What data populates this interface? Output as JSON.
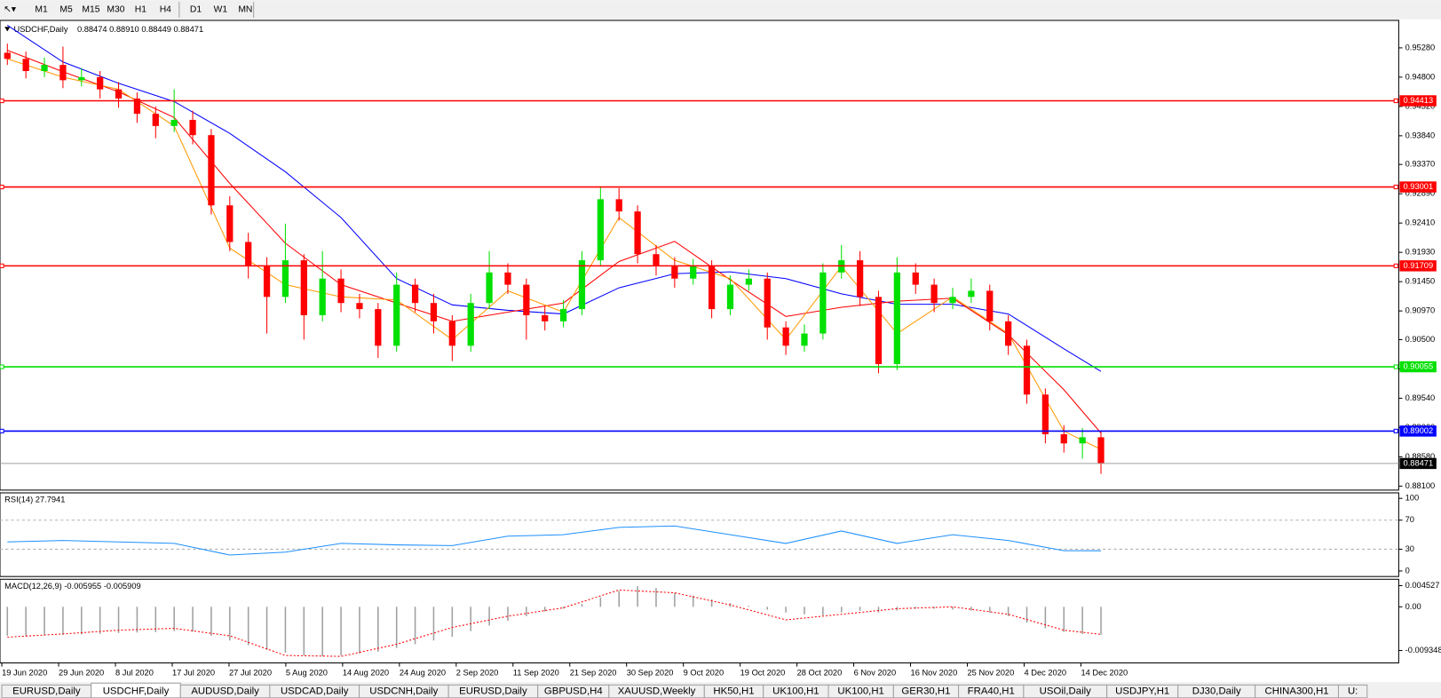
{
  "toolbar": {
    "timeframes": [
      "M1",
      "M5",
      "M15",
      "M30",
      "H1",
      "H4",
      "D1",
      "W1",
      "MN"
    ]
  },
  "tabs": [
    {
      "label": "EURUSD,Daily",
      "active": false
    },
    {
      "label": "USDCHF,Daily",
      "active": true
    },
    {
      "label": "AUDUSD,Daily",
      "active": false
    },
    {
      "label": "USDCAD,Daily",
      "active": false
    },
    {
      "label": "USDCNH,Daily",
      "active": false
    },
    {
      "label": "EURUSD,Daily",
      "active": false
    },
    {
      "label": "GBPUSD,H4",
      "active": false
    },
    {
      "label": "XAUUSD,Weekly",
      "active": false
    },
    {
      "label": "HK50,H1",
      "active": false
    },
    {
      "label": "UK100,H1",
      "active": false
    },
    {
      "label": "UK100,H1",
      "active": false
    },
    {
      "label": "GER30,H1",
      "active": false
    },
    {
      "label": "FRA40,H1",
      "active": false
    },
    {
      "label": "USOil,Daily",
      "active": false
    },
    {
      "label": "USDJPY,H1",
      "active": false
    },
    {
      "label": "DJ30,Daily",
      "active": false
    },
    {
      "label": "CHINA300,H1",
      "active": false
    },
    {
      "label": "U:",
      "active": false
    }
  ],
  "chart_data": [
    {
      "type": "candlestick",
      "title": "USDCHF,Daily",
      "quote": "0.88474 0.88910 0.88449 0.88471",
      "up_color": "#00e000",
      "down_color": "#ff0000",
      "ylim": [
        0.8805,
        0.957
      ],
      "yticks": [
        {
          "value": 0.9528,
          "label": "0.95280"
        },
        {
          "value": 0.948,
          "label": "0.94800"
        },
        {
          "value": 0.9432,
          "label": "0.94320"
        },
        {
          "value": 0.9384,
          "label": "0.93840"
        },
        {
          "value": 0.9337,
          "label": "0.93370"
        },
        {
          "value": 0.9289,
          "label": "0.92890"
        },
        {
          "value": 0.9241,
          "label": "0.92410"
        },
        {
          "value": 0.9193,
          "label": "0.91930"
        },
        {
          "value": 0.9145,
          "label": "0.91450"
        },
        {
          "value": 0.9097,
          "label": "0.90970"
        },
        {
          "value": 0.905,
          "label": "0.90500"
        },
        {
          "value": 0.9002,
          "label": "0.90020"
        },
        {
          "value": 0.8954,
          "label": "0.89540"
        },
        {
          "value": 0.8906,
          "label": "0.89060"
        },
        {
          "value": 0.8858,
          "label": "0.88580"
        },
        {
          "value": 0.881,
          "label": "0.88100"
        }
      ],
      "levels": [
        {
          "value": 0.94413,
          "color": "#ff0000"
        },
        {
          "value": 0.93001,
          "color": "#ff0000"
        },
        {
          "value": 0.91709,
          "color": "#ff0000"
        },
        {
          "value": 0.90055,
          "color": "#00e000"
        },
        {
          "value": 0.89002,
          "color": "#0000ff"
        },
        {
          "value": 0.88471,
          "color": "#000000"
        }
      ],
      "date_labels": [
        "19 Jun 2020",
        "29 Jun 2020",
        "8 Jul 2020",
        "17 Jul 2020",
        "27 Jul 2020",
        "5 Aug 2020",
        "14 Aug 2020",
        "24 Aug 2020",
        "2 Sep 2020",
        "11 Sep 2020",
        "21 Sep 2020",
        "30 Sep 2020",
        "9 Oct 2020",
        "19 Oct 2020",
        "28 Oct 2020",
        "6 Nov 2020",
        "16 Nov 2020",
        "25 Nov 2020",
        "4 Dec 2020",
        "14 Dec 2020"
      ],
      "ohlc": [
        [
          0.952,
          0.9535,
          0.95,
          0.951
        ],
        [
          0.951,
          0.9522,
          0.9478,
          0.949
        ],
        [
          0.949,
          0.9512,
          0.948,
          0.95
        ],
        [
          0.95,
          0.953,
          0.9462,
          0.9475
        ],
        [
          0.9475,
          0.9495,
          0.9465,
          0.948
        ],
        [
          0.948,
          0.949,
          0.9445,
          0.946
        ],
        [
          0.946,
          0.9472,
          0.943,
          0.9445
        ],
        [
          0.9445,
          0.9455,
          0.9405,
          0.942
        ],
        [
          0.942,
          0.9432,
          0.938,
          0.94
        ],
        [
          0.94,
          0.946,
          0.939,
          0.941
        ],
        [
          0.941,
          0.9425,
          0.937,
          0.9385
        ],
        [
          0.9385,
          0.9395,
          0.9255,
          0.927
        ],
        [
          0.927,
          0.9285,
          0.9195,
          0.921
        ],
        [
          0.921,
          0.9225,
          0.915,
          0.917
        ],
        [
          0.917,
          0.9185,
          0.906,
          0.912
        ],
        [
          0.912,
          0.924,
          0.911,
          0.918
        ],
        [
          0.918,
          0.919,
          0.905,
          0.909
        ],
        [
          0.909,
          0.9195,
          0.908,
          0.915
        ],
        [
          0.915,
          0.9165,
          0.9095,
          0.911
        ],
        [
          0.911,
          0.9125,
          0.9085,
          0.91
        ],
        [
          0.91,
          0.911,
          0.902,
          0.904
        ],
        [
          0.904,
          0.916,
          0.903,
          0.914
        ],
        [
          0.914,
          0.915,
          0.9095,
          0.911
        ],
        [
          0.911,
          0.9125,
          0.906,
          0.908
        ],
        [
          0.908,
          0.909,
          0.9015,
          0.904
        ],
        [
          0.904,
          0.9125,
          0.903,
          0.911
        ],
        [
          0.911,
          0.9195,
          0.91,
          0.916
        ],
        [
          0.916,
          0.9175,
          0.9125,
          0.914
        ],
        [
          0.914,
          0.915,
          0.905,
          0.909
        ],
        [
          0.909,
          0.9105,
          0.9065,
          0.908
        ],
        [
          0.908,
          0.9115,
          0.907,
          0.91
        ],
        [
          0.91,
          0.9195,
          0.909,
          0.918
        ],
        [
          0.918,
          0.93,
          0.917,
          0.928
        ],
        [
          0.928,
          0.9298,
          0.9245,
          0.926
        ],
        [
          0.926,
          0.927,
          0.9175,
          0.919
        ],
        [
          0.919,
          0.9205,
          0.9155,
          0.917
        ],
        [
          0.917,
          0.9185,
          0.9135,
          0.915
        ],
        [
          0.915,
          0.9182,
          0.914,
          0.917
        ],
        [
          0.917,
          0.918,
          0.9085,
          0.91
        ],
        [
          0.91,
          0.9155,
          0.909,
          0.914
        ],
        [
          0.914,
          0.9165,
          0.913,
          0.915
        ],
        [
          0.915,
          0.916,
          0.905,
          0.907
        ],
        [
          0.907,
          0.908,
          0.9025,
          0.904
        ],
        [
          0.904,
          0.9075,
          0.903,
          0.906
        ],
        [
          0.906,
          0.9175,
          0.905,
          0.916
        ],
        [
          0.916,
          0.9205,
          0.915,
          0.918
        ],
        [
          0.918,
          0.9195,
          0.9105,
          0.912
        ],
        [
          0.912,
          0.913,
          0.8995,
          0.901
        ],
        [
          0.901,
          0.9185,
          0.9,
          0.916
        ],
        [
          0.916,
          0.9175,
          0.9125,
          0.914
        ],
        [
          0.914,
          0.915,
          0.9095,
          0.911
        ],
        [
          0.911,
          0.9135,
          0.91,
          0.912
        ],
        [
          0.912,
          0.915,
          0.911,
          0.913
        ],
        [
          0.913,
          0.914,
          0.9065,
          0.908
        ],
        [
          0.908,
          0.909,
          0.9025,
          0.904
        ],
        [
          0.904,
          0.905,
          0.8945,
          0.896
        ],
        [
          0.896,
          0.897,
          0.888,
          0.8895
        ],
        [
          0.8895,
          0.891,
          0.8865,
          0.888
        ],
        [
          0.888,
          0.8905,
          0.8855,
          0.889
        ],
        [
          0.889,
          0.89,
          0.883,
          0.8847
        ]
      ],
      "series": [
        {
          "color": "#0000ff",
          "x": [
            0,
            3,
            6,
            9,
            12,
            15,
            18,
            21,
            24,
            27,
            30,
            33,
            36,
            39,
            42,
            45,
            48,
            51,
            54,
            57,
            59
          ],
          "values": [
            0.9565,
            0.9505,
            0.947,
            0.944,
            0.9388,
            0.9325,
            0.925,
            0.915,
            0.9107,
            0.9098,
            0.9092,
            0.9135,
            0.9158,
            0.9161,
            0.915,
            0.9125,
            0.9108,
            0.9108,
            0.9092,
            0.9035,
            0.8998
          ]
        },
        {
          "color": "#ff0000",
          "x": [
            0,
            3,
            6,
            9,
            12,
            15,
            18,
            21,
            24,
            27,
            30,
            33,
            36,
            39,
            42,
            45,
            48,
            51,
            54,
            57,
            59
          ],
          "values": [
            0.9524,
            0.9489,
            0.9456,
            0.9414,
            0.9306,
            0.9208,
            0.914,
            0.911,
            0.908,
            0.9095,
            0.911,
            0.9178,
            0.9211,
            0.9148,
            0.9088,
            0.9103,
            0.9113,
            0.9118,
            0.9058,
            0.8968,
            0.8897
          ]
        },
        {
          "color": "#ff9900",
          "x": [
            0,
            3,
            6,
            9,
            12,
            15,
            18,
            21,
            24,
            27,
            30,
            33,
            36,
            39,
            42,
            45,
            48,
            51,
            54,
            57,
            59
          ],
          "values": [
            0.951,
            0.948,
            0.946,
            0.94,
            0.92,
            0.914,
            0.912,
            0.9115,
            0.905,
            0.913,
            0.9095,
            0.925,
            0.918,
            0.915,
            0.905,
            0.917,
            0.906,
            0.912,
            0.906,
            0.89,
            0.887
          ]
        }
      ]
    },
    {
      "type": "line",
      "title": "RSI(14) 27.7941",
      "color": "#1e90ff",
      "ylim": [
        0,
        100
      ],
      "yticks": [
        100,
        70,
        30,
        0
      ],
      "grid_levels": [
        70,
        30
      ],
      "x": [
        0,
        3,
        6,
        9,
        12,
        15,
        18,
        21,
        24,
        27,
        30,
        33,
        36,
        39,
        42,
        45,
        48,
        51,
        54,
        57,
        59
      ],
      "values": [
        40,
        42,
        40,
        38,
        22,
        26,
        38,
        36,
        35,
        48,
        50,
        60,
        62,
        50,
        38,
        55,
        38,
        50,
        42,
        28,
        27.7941
      ]
    },
    {
      "type": "macd",
      "title": "MACD(12,26,9) -0.005955 -0.005909",
      "hist_color": "#a0a0a0",
      "signal_color": "#ff0000",
      "ylim": [
        -0.0118,
        0.0055
      ],
      "yticks": [
        0.004527,
        {
          "value": 0,
          "label": "0.00"
        },
        -0.009348
      ],
      "histogram": [
        -0.0062,
        -0.0062,
        -0.0061,
        -0.006,
        -0.0059,
        -0.0058,
        -0.0056,
        -0.0055,
        -0.0054,
        -0.0052,
        -0.0053,
        -0.0062,
        -0.0072,
        -0.0082,
        -0.0092,
        -0.0098,
        -0.0104,
        -0.0106,
        -0.0104,
        -0.01,
        -0.0096,
        -0.0088,
        -0.008,
        -0.0072,
        -0.0064,
        -0.0052,
        -0.004,
        -0.003,
        -0.002,
        -0.001,
        -0.0004,
        0.0006,
        0.002,
        0.0034,
        0.0044,
        0.004,
        0.003,
        0.0024,
        0.0016,
        0.0008,
        0.0002,
        -0.0006,
        -0.0012,
        -0.0016,
        -0.0018,
        -0.0012,
        -0.0008,
        -0.0012,
        -0.0008,
        -0.0004,
        -0.0004,
        -0.0006,
        -0.0008,
        -0.0012,
        -0.002,
        -0.0034,
        -0.0046,
        -0.0054,
        -0.0058,
        -0.005955
      ],
      "signal_x": [
        0,
        3,
        6,
        9,
        12,
        15,
        18,
        21,
        24,
        27,
        30,
        33,
        36,
        39,
        42,
        45,
        48,
        51,
        54,
        57,
        59
      ],
      "signal": [
        -0.0065,
        -0.0058,
        -0.005,
        -0.0046,
        -0.0062,
        -0.0104,
        -0.0106,
        -0.008,
        -0.0044,
        -0.002,
        -0.0002,
        0.0036,
        0.003,
        0.0004,
        -0.0028,
        -0.0016,
        -0.0004,
        0.0,
        -0.0016,
        -0.005,
        -0.005909
      ]
    }
  ]
}
